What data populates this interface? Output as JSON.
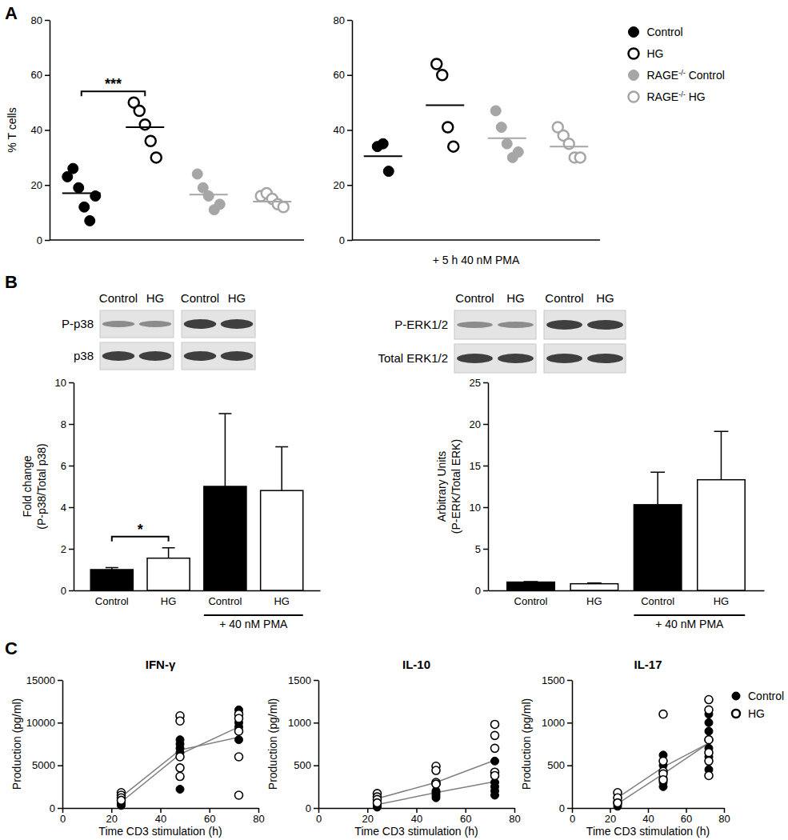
{
  "chart_data": [
    {
      "type": "scatter",
      "annotations": [
        "A"
      ],
      "ylabel": "% T cells",
      "ylim": [
        0,
        80
      ],
      "yticks": [
        0,
        20,
        40,
        60,
        80
      ],
      "tick_labels": "y",
      "series": [
        {
          "color": "#000000",
          "marker": "filled",
          "values": [
            23,
            26,
            19,
            12,
            7,
            16
          ],
          "mean": 17
        },
        {
          "color": "#000000",
          "marker": "open",
          "values": [
            50,
            47,
            42,
            36,
            30
          ],
          "mean": 41
        },
        {
          "color": "#a6a6a6",
          "marker": "filled",
          "values": [
            24,
            19,
            16,
            11,
            13
          ],
          "mean": 16.5
        },
        {
          "color": "#a6a6a6",
          "marker": "open",
          "values": [
            16,
            17,
            15,
            13,
            12
          ],
          "mean": 14
        }
      ],
      "significance": [
        {
          "text": "***",
          "from": 0,
          "to": 1
        }
      ]
    },
    {
      "type": "scatter",
      "xlabel": "+ 5 h 40 nM PMA",
      "ylim": [
        0,
        80
      ],
      "yticks": [
        0,
        20,
        40,
        60,
        80
      ],
      "tick_labels": "y",
      "legend": "right",
      "series": [
        {
          "name": "Control",
          "color": "#000000",
          "marker": "filled",
          "values": [
            34,
            35,
            25
          ],
          "mean": 30.5
        },
        {
          "name": "HG",
          "color": "#000000",
          "marker": "open",
          "values": [
            64,
            60,
            41,
            34
          ],
          "mean": 49
        },
        {
          "name": "RAGE-/- Control",
          "color": "#a6a6a6",
          "marker": "filled",
          "values": [
            47,
            41,
            35,
            30,
            32
          ],
          "mean": 37
        },
        {
          "name": "RAGE-/- HG",
          "color": "#a6a6a6",
          "marker": "open",
          "values": [
            41,
            38,
            35,
            30,
            30
          ],
          "mean": 34
        }
      ]
    },
    {
      "type": "bar",
      "annotations": [
        "B"
      ],
      "blot": {
        "lanes": [
          "Control",
          "HG",
          "Control",
          "HG"
        ],
        "rows": [
          "P-p38",
          "p38"
        ]
      },
      "categories": [
        "Control",
        "HG",
        "Control",
        "HG"
      ],
      "values": [
        1,
        1.55,
        5,
        4.8
      ],
      "errors": [
        0.1,
        0.5,
        3.5,
        2.1
      ],
      "colors": [
        "#000000",
        "#ffffff",
        "#000000",
        "#ffffff"
      ],
      "ylabel": [
        "Fold change",
        "(P-p38/Total p38)"
      ],
      "ylim": [
        0,
        10
      ],
      "yticks": [
        0,
        2,
        4,
        6,
        8,
        10
      ],
      "group_label": {
        "text": "+ 40 nM PMA",
        "from": 2,
        "to": 3
      },
      "significance": [
        {
          "text": "*",
          "from": 0,
          "to": 1
        }
      ]
    },
    {
      "type": "bar",
      "blot": {
        "lanes": [
          "Control",
          "HG",
          "Control",
          "HG"
        ],
        "rows": [
          "P-ERK1/2",
          "Total ERK1/2"
        ]
      },
      "categories": [
        "Control",
        "HG",
        "Control",
        "HG"
      ],
      "values": [
        1,
        0.8,
        10.3,
        13.3
      ],
      "errors": [
        0.05,
        0.1,
        3.9,
        5.8
      ],
      "colors": [
        "#000000",
        "#ffffff",
        "#000000",
        "#ffffff"
      ],
      "ylabel": [
        "Arbitrary Units",
        "(P-ERK/Total ERK)"
      ],
      "ylim": [
        0,
        25
      ],
      "yticks": [
        0,
        5,
        10,
        15,
        20,
        25
      ],
      "group_label": {
        "text": "+ 40 nM PMA",
        "from": 2,
        "to": 3
      }
    },
    {
      "type": "scatter",
      "annotations": [
        "C"
      ],
      "title": "IFN-γ",
      "xlabel": "Time CD3 stimulation (h)",
      "ylabel": "Production (pg/ml)",
      "xlim": [
        0,
        80
      ],
      "xticks": [
        0,
        20,
        40,
        60,
        80
      ],
      "ylim": [
        0,
        15000
      ],
      "yticks": [
        0,
        5000,
        10000,
        15000
      ],
      "series": [
        {
          "color": "#000000",
          "marker": "filled",
          "x": [
            24,
            24,
            24,
            24,
            48,
            48,
            48,
            48,
            48,
            72,
            72,
            72,
            72,
            72,
            72
          ],
          "values": [
            500,
            800,
            1000,
            300,
            2200,
            6500,
            7000,
            7500,
            8000,
            8000,
            9000,
            9500,
            10000,
            11000,
            11500
          ],
          "line": {
            "color": "#808080",
            "x": [
              24,
              48,
              72
            ],
            "values": [
              700,
              6300,
              9500
            ]
          }
        },
        {
          "color": "#000000",
          "marker": "open",
          "x": [
            24,
            24,
            24,
            24,
            48,
            48,
            48,
            48,
            48,
            72,
            72,
            72,
            72,
            72
          ],
          "values": [
            1800,
            1500,
            1200,
            900,
            10800,
            10200,
            6000,
            4700,
            3700,
            11000,
            10500,
            9000,
            6000,
            1500
          ],
          "line": {
            "color": "#808080",
            "x": [
              24,
              48,
              72
            ],
            "values": [
              1300,
              6800,
              8300
            ]
          }
        }
      ]
    },
    {
      "type": "scatter",
      "title": "IL-10",
      "xlabel": "Time CD3 stimulation (h)",
      "ylabel": "Production (pg/ml)",
      "xlim": [
        0,
        80
      ],
      "xticks": [
        0,
        20,
        40,
        60,
        80
      ],
      "ylim": [
        0,
        1500
      ],
      "yticks": [
        0,
        500,
        1000,
        1500
      ],
      "series": [
        {
          "color": "#000000",
          "marker": "filled",
          "x": [
            24,
            24,
            24,
            24,
            48,
            48,
            48,
            48,
            48,
            72,
            72,
            72,
            72,
            72,
            72
          ],
          "values": [
            20,
            50,
            80,
            10,
            120,
            150,
            180,
            200,
            280,
            150,
            250,
            300,
            400,
            550,
            200
          ],
          "line": {
            "color": "#808080",
            "x": [
              24,
              48,
              72
            ],
            "values": [
              40,
              180,
              310
            ]
          }
        },
        {
          "color": "#000000",
          "marker": "open",
          "x": [
            24,
            24,
            24,
            24,
            48,
            48,
            48,
            48,
            72,
            72,
            72,
            72,
            72
          ],
          "values": [
            170,
            130,
            100,
            60,
            490,
            440,
            300,
            280,
            980,
            850,
            700,
            420,
            380
          ],
          "line": {
            "color": "#808080",
            "x": [
              24,
              48,
              72
            ],
            "values": [
              110,
              300,
              560
            ]
          }
        }
      ]
    },
    {
      "type": "scatter",
      "title": "IL-17",
      "xlabel": "Time CD3 stimulation (h)",
      "ylabel": "Production (pg/ml)",
      "xlim": [
        0,
        80
      ],
      "xticks": [
        0,
        20,
        40,
        60,
        80
      ],
      "ylim": [
        0,
        1500
      ],
      "yticks": [
        0,
        500,
        1000,
        1500
      ],
      "legend": "right",
      "series": [
        {
          "name": "Control",
          "color": "#000000",
          "marker": "filled",
          "x": [
            24,
            24,
            24,
            48,
            48,
            48,
            48,
            48,
            72,
            72,
            72,
            72,
            72,
            72,
            72
          ],
          "values": [
            20,
            50,
            80,
            250,
            300,
            350,
            500,
            620,
            450,
            600,
            700,
            800,
            900,
            1000,
            1100
          ],
          "line": {
            "color": "#808080",
            "x": [
              24,
              48,
              72
            ],
            "values": [
              50,
              400,
              760
            ]
          }
        },
        {
          "name": "HG",
          "color": "#000000",
          "marker": "open",
          "x": [
            24,
            24,
            24,
            48,
            48,
            48,
            48,
            48,
            72,
            72,
            72,
            72,
            72,
            72
          ],
          "values": [
            180,
            120,
            60,
            1100,
            550,
            430,
            400,
            330,
            1270,
            1150,
            800,
            650,
            550,
            380
          ],
          "line": {
            "color": "#808080",
            "x": [
              24,
              48,
              72
            ],
            "values": [
              120,
              480,
              760
            ]
          }
        }
      ]
    }
  ]
}
